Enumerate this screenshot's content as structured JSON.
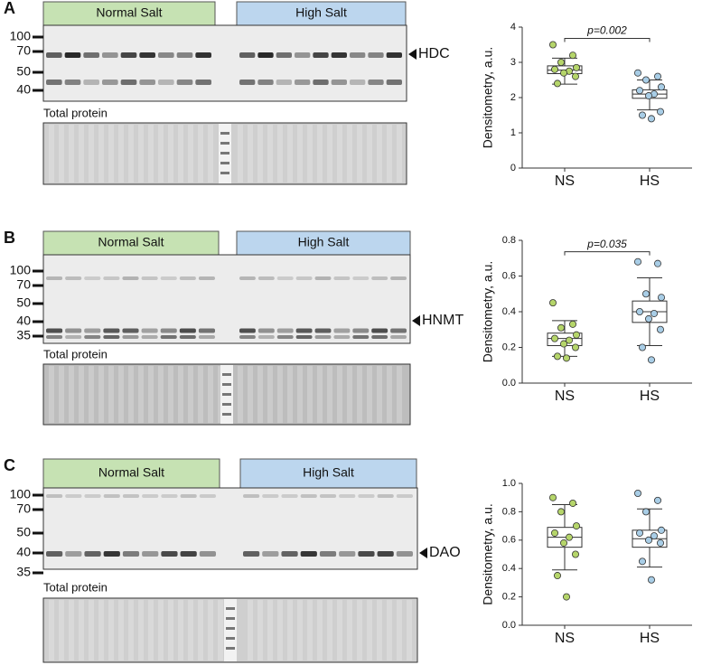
{
  "panels": [
    {
      "letter": "A",
      "groups": [
        "Normal Salt",
        "High Salt"
      ],
      "markers": [
        "100",
        "70",
        "50",
        "40"
      ],
      "target": "HDC",
      "loading_label": "Total protein"
    },
    {
      "letter": "B",
      "groups": [
        "Normal Salt",
        "High Salt"
      ],
      "markers": [
        "100",
        "70",
        "50",
        "40",
        "35"
      ],
      "target": "HNMT",
      "loading_label": "Total protein"
    },
    {
      "letter": "C",
      "groups": [
        "Normal Salt",
        "High Salt"
      ],
      "markers": [
        "100",
        "70",
        "50",
        "40",
        "35"
      ],
      "target": "DAO",
      "loading_label": "Total protein"
    }
  ],
  "chart_data": [
    {
      "type": "box",
      "ylabel": "Densitometry, a.u.",
      "categories": [
        "NS",
        "HS"
      ],
      "groups": [
        {
          "color": "#b5d56a",
          "points": [
            3.5,
            3.2,
            3.0,
            2.85,
            2.8,
            2.75,
            2.7,
            2.6,
            2.4
          ],
          "box": {
            "whisker_low": 2.38,
            "q1": 2.68,
            "median": 2.78,
            "q3": 2.9,
            "whisker_high": 3.12
          }
        },
        {
          "color": "#a8cde6",
          "points": [
            2.7,
            2.6,
            2.5,
            2.3,
            2.2,
            2.1,
            2.05,
            1.6,
            1.5,
            1.4
          ],
          "box": {
            "whisker_low": 1.65,
            "q1": 1.98,
            "median": 2.1,
            "q3": 2.22,
            "whisker_high": 2.5
          }
        }
      ],
      "ylim": [
        0,
        4
      ],
      "yticks": [
        0,
        1,
        2,
        3,
        4
      ],
      "annotation": "p=0.002"
    },
    {
      "type": "box",
      "ylabel": "Densitometry, a.u.",
      "categories": [
        "NS",
        "HS"
      ],
      "groups": [
        {
          "color": "#b5d56a",
          "points": [
            0.45,
            0.33,
            0.31,
            0.27,
            0.25,
            0.24,
            0.22,
            0.2,
            0.15,
            0.14
          ],
          "box": {
            "whisker_low": 0.15,
            "q1": 0.21,
            "median": 0.25,
            "q3": 0.28,
            "whisker_high": 0.35
          }
        },
        {
          "color": "#a8cde6",
          "points": [
            0.68,
            0.67,
            0.5,
            0.48,
            0.4,
            0.39,
            0.36,
            0.3,
            0.2,
            0.13
          ],
          "box": {
            "whisker_low": 0.21,
            "q1": 0.34,
            "median": 0.4,
            "q3": 0.46,
            "whisker_high": 0.59
          }
        }
      ],
      "ylim": [
        0,
        0.8
      ],
      "yticks": [
        {
          "value": 0,
          "label": "0.0"
        },
        0.2,
        0.4,
        0.6,
        0.8
      ],
      "annotation": "p=0.035"
    },
    {
      "type": "box",
      "ylabel": "Densitometry, a.u.",
      "categories": [
        "NS",
        "HS"
      ],
      "groups": [
        {
          "color": "#b5d56a",
          "points": [
            0.9,
            0.86,
            0.8,
            0.7,
            0.65,
            0.62,
            0.58,
            0.5,
            0.35,
            0.2
          ],
          "box": {
            "whisker_low": 0.39,
            "q1": 0.55,
            "median": 0.62,
            "q3": 0.69,
            "whisker_high": 0.85
          }
        },
        {
          "color": "#a8cde6",
          "points": [
            0.93,
            0.88,
            0.8,
            0.67,
            0.65,
            0.63,
            0.6,
            0.58,
            0.45,
            0.32
          ],
          "box": {
            "whisker_low": 0.41,
            "q1": 0.55,
            "median": 0.61,
            "q3": 0.67,
            "whisker_high": 0.82
          }
        }
      ],
      "ylim": [
        0,
        1
      ],
      "yticks": [
        {
          "value": 0,
          "label": "0.0"
        },
        0.2,
        0.4,
        0.6,
        0.8,
        {
          "value": 1,
          "label": "1.0"
        }
      ]
    }
  ]
}
